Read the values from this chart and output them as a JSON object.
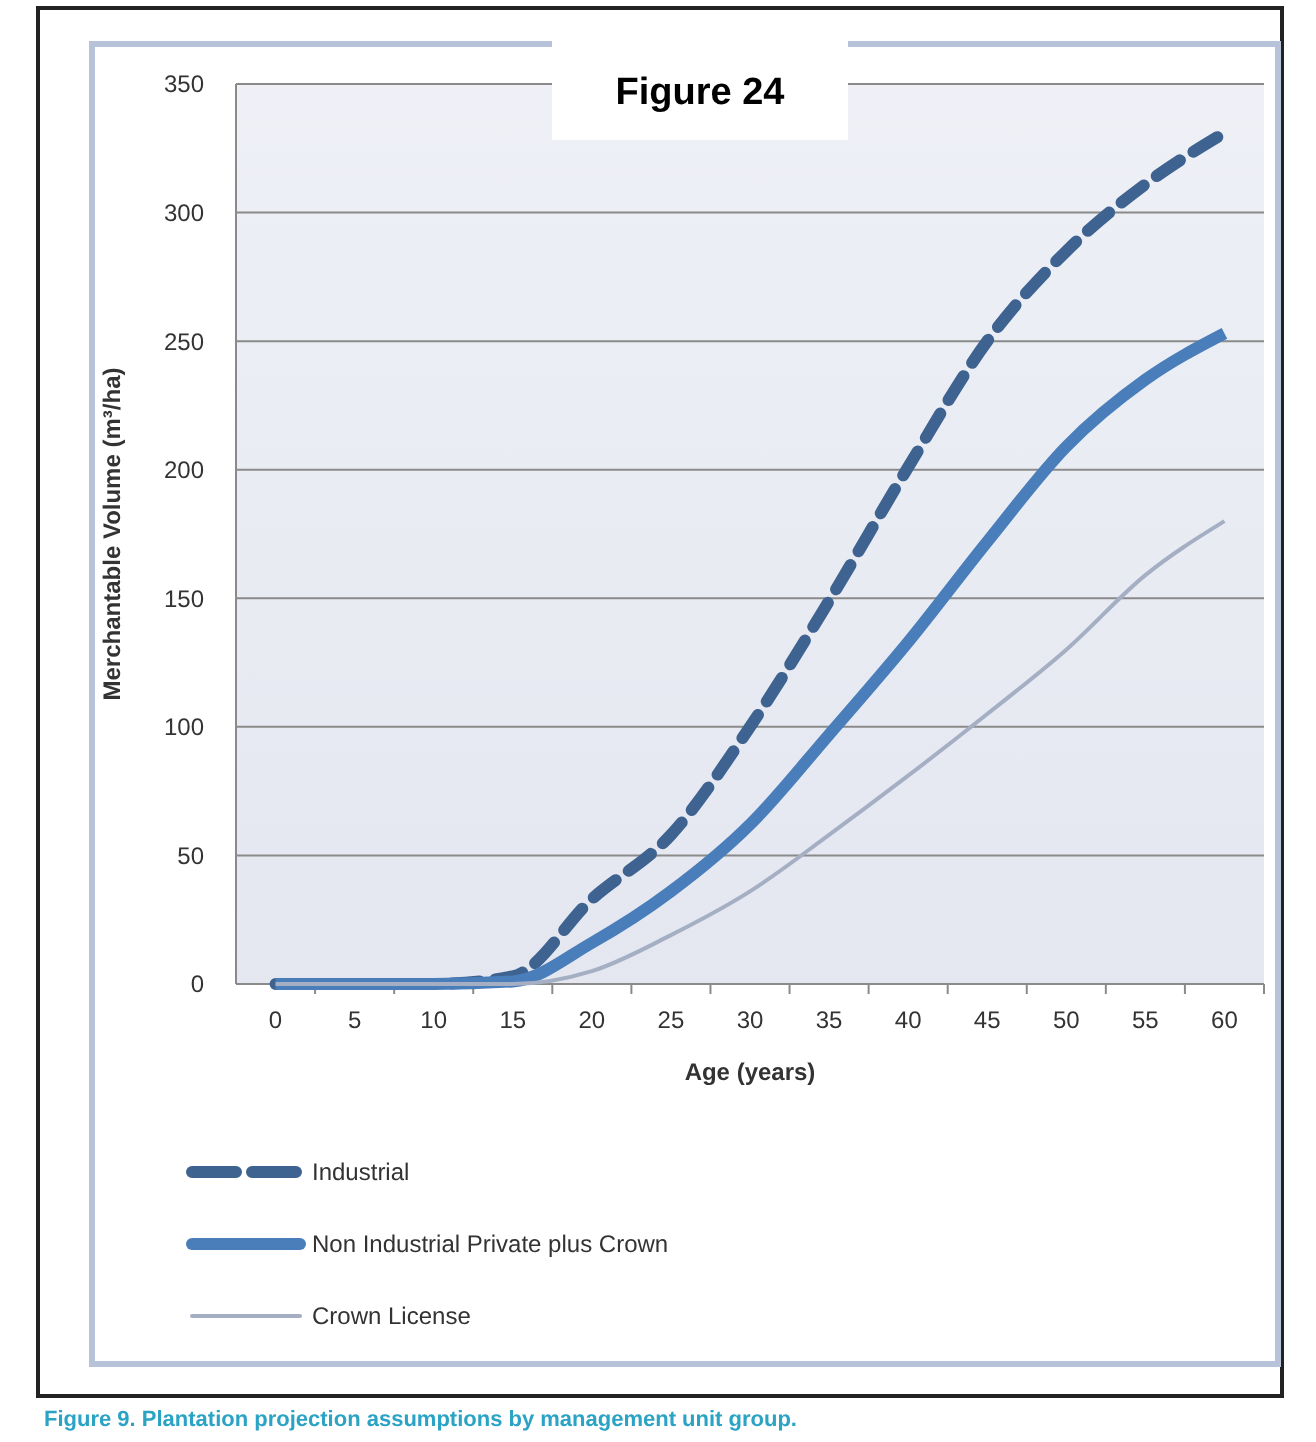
{
  "chart_data": {
    "type": "line",
    "title": "Figure 24",
    "xlabel": "Age (years)",
    "ylabel": "Merchantable Volume (m³/ha)",
    "annotations": [
      "Figure 9.  Plantation projection assumptions by management unit group."
    ],
    "categories": [
      "0",
      "5",
      "10",
      "15",
      "20",
      "25",
      "30",
      "35",
      "40",
      "45",
      "50",
      "55",
      "60"
    ],
    "series": [
      {
        "name": "Industrial",
        "color": "#3f6390",
        "line_style": "dashed",
        "values": [
          0,
          0,
          0,
          3,
          33,
          58,
          100,
          149,
          201,
          250,
          285,
          311,
          331
        ]
      },
      {
        "name": "Non Industrial Private plus Crown",
        "color": "#4a7ebb",
        "line_style": "solid",
        "values": [
          0,
          0,
          0,
          1,
          16,
          36,
          62,
          97,
          133,
          172,
          209,
          235,
          253
        ]
      },
      {
        "name": "Crown License",
        "color": "#a5afc4",
        "line_style": "solid",
        "values": [
          0,
          0,
          0,
          0,
          5,
          19,
          36,
          58,
          81,
          105,
          130,
          159,
          180
        ]
      }
    ],
    "ylim": [
      0,
      350
    ],
    "yticks": [
      0,
      50,
      100,
      150,
      200,
      250,
      300,
      350
    ],
    "grid": "y",
    "legend": "bottom",
    "marker": "none"
  }
}
